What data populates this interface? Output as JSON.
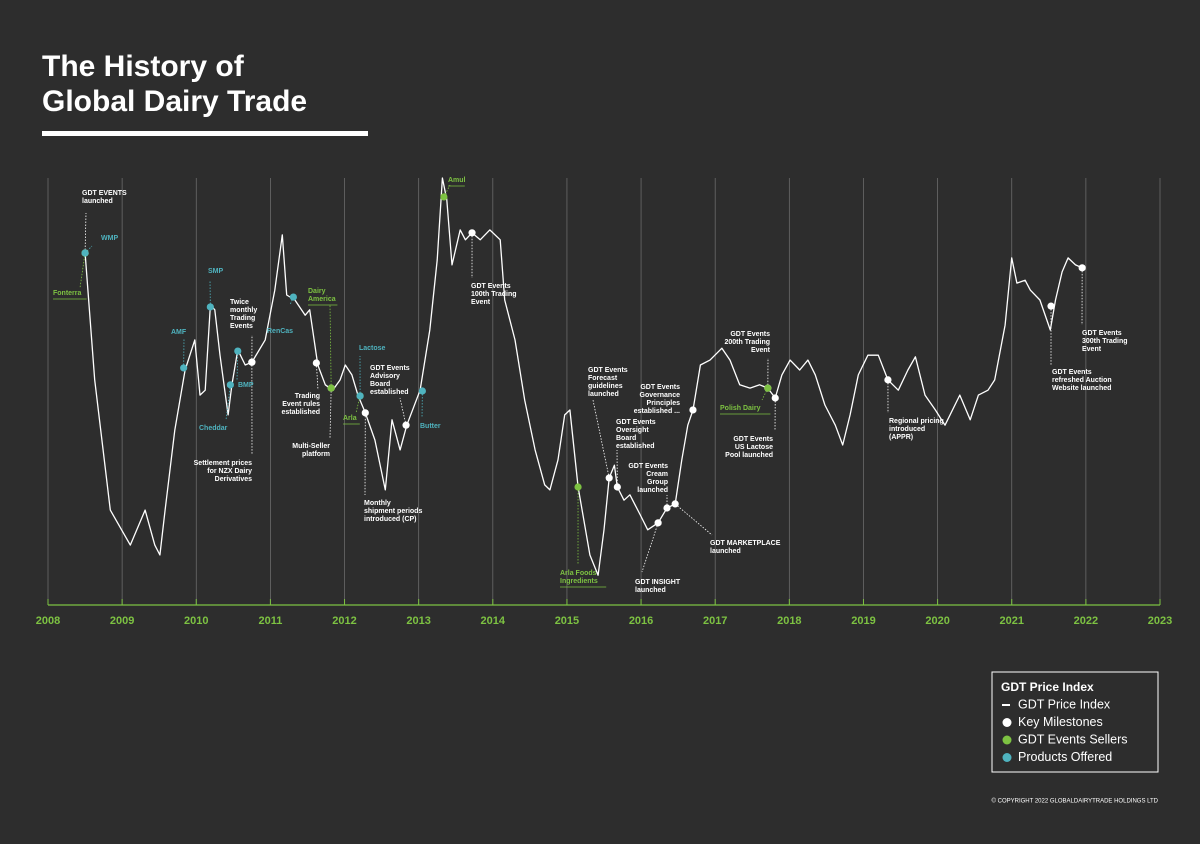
{
  "chart_data": {
    "type": "line",
    "title": [
      "The History of",
      "Global Dairy Trade"
    ],
    "x": [
      2008.5,
      2008.63,
      2008.84,
      2009.11,
      2009.31,
      2009.44,
      2009.51,
      2009.58,
      2009.71,
      2009.85,
      2009.98,
      2010.05,
      2010.12,
      2010.19,
      2010.25,
      2010.32,
      2010.43,
      2010.48,
      2010.56,
      2010.66,
      2010.75,
      2010.93,
      2011.06,
      2011.16,
      2011.22,
      2011.33,
      2011.47,
      2011.53,
      2011.64,
      2011.74,
      2011.84,
      2011.94,
      2012.01,
      2012.1,
      2012.18,
      2012.28,
      2012.41,
      2012.55,
      2012.64,
      2012.75,
      2012.84,
      2013.02,
      2013.15,
      2013.25,
      2013.32,
      2013.38,
      2013.45,
      2013.56,
      2013.63,
      2013.72,
      2013.83,
      2013.96,
      2014.1,
      2014.16,
      2014.3,
      2014.43,
      2014.57,
      2014.7,
      2014.77,
      2014.88,
      2014.97,
      2015.04,
      2015.15,
      2015.31,
      2015.42,
      2015.5,
      2015.57,
      2015.64,
      2015.68,
      2015.77,
      2015.85,
      2015.99,
      2016.09,
      2016.23,
      2016.35,
      2016.46,
      2016.55,
      2016.63,
      2016.7,
      2016.8,
      2016.93,
      2017.09,
      2017.2,
      2017.33,
      2017.47,
      2017.6,
      2017.71,
      2017.81,
      2017.9,
      2018.01,
      2018.14,
      2018.25,
      2018.35,
      2018.48,
      2018.62,
      2018.72,
      2018.82,
      2018.93,
      2019.06,
      2019.2,
      2019.33,
      2019.47,
      2019.6,
      2019.7,
      2019.83,
      2019.97,
      2020.1,
      2020.3,
      2020.44,
      2020.55,
      2020.68,
      2020.77,
      2020.91,
      2021.0,
      2021.07,
      2021.18,
      2021.25,
      2021.38,
      2021.52,
      2021.59,
      2021.68,
      2021.76,
      2021.86,
      2021.95
    ],
    "series": [
      {
        "name": "GDT Price Index",
        "color": "#ffffff",
        "values": [
          81.8,
          51.0,
          19.4,
          10.9,
          19.4,
          10.9,
          8.5,
          19.4,
          38.8,
          53.4,
          60.7,
          47.3,
          48.5,
          69.2,
          68.0,
          57.0,
          42.5,
          49.8,
          58.3,
          54.6,
          55.3,
          60.7,
          72.8,
          86.2,
          71.6,
          70.4,
          66.7,
          68.0,
          54.6,
          49.8,
          48.5,
          51.0,
          54.6,
          52.2,
          47.3,
          43.0,
          36.4,
          24.3,
          41.3,
          34.0,
          40.0,
          48.5,
          63.1,
          80.1,
          100,
          94.7,
          78.9,
          87.4,
          85.0,
          86.7,
          85.0,
          87.4,
          85.0,
          70.4,
          60.7,
          46.1,
          34.0,
          25.5,
          24.3,
          31.6,
          42.5,
          43.7,
          25.0,
          8.5,
          3.6,
          14.6,
          27.2,
          30.3,
          25.0,
          21.8,
          23.1,
          18.2,
          14.6,
          16.3,
          19.9,
          20.9,
          31.6,
          40.0,
          43.7,
          54.6,
          55.8,
          58.7,
          55.8,
          49.8,
          49.0,
          49.8,
          49.0,
          46.6,
          52.2,
          55.8,
          53.4,
          55.8,
          52.2,
          44.9,
          40.0,
          35.2,
          42.5,
          52.2,
          57.0,
          57.0,
          51.0,
          48.5,
          53.4,
          56.6,
          47.3,
          43.7,
          40.0,
          47.3,
          41.3,
          47.3,
          48.5,
          51.0,
          64.3,
          80.6,
          74.5,
          75.2,
          72.8,
          70.4,
          63.1,
          70.4,
          77.2,
          80.6,
          78.9,
          78.2
        ]
      }
    ],
    "markers": [
      {
        "name": "Key Milestones",
        "color": "#ffffff",
        "x": [
          2008.5,
          2010.75,
          2010.75,
          2011.62,
          2011.82,
          2012.28,
          2012.83,
          2013.72,
          2015.57,
          2015.68,
          2016.23,
          2016.35,
          2016.46,
          2016.7,
          2017.71,
          2017.81,
          2019.33,
          2021.53,
          2021.95
        ],
        "values": [
          81.8,
          55.3,
          55.3,
          55.1,
          49.0,
          43.0,
          40.0,
          86.7,
          27.2,
          25.0,
          16.3,
          19.9,
          20.9,
          43.7,
          49.0,
          46.6,
          51.0,
          68.9,
          78.2
        ],
        "labels": [
          [
            "GDT EVENTS",
            "launched"
          ],
          [
            "Twice",
            "monthly",
            "Trading",
            "Events"
          ],
          [
            "Settlement prices",
            "for NZX Dairy",
            "Derivatives"
          ],
          [
            "Trading",
            "Event rules",
            "established"
          ],
          [
            "Multi-Seller",
            "platform"
          ],
          [
            "Monthly",
            "shipment periods",
            "introduced (CP)"
          ],
          [
            "GDT Events",
            "Advisory",
            "Board",
            "established"
          ],
          [
            "GDT Events",
            "100th Trading",
            "Event"
          ],
          [
            "GDT Events",
            "Forecast",
            "guidelines",
            "launched"
          ],
          [
            "GDT Events",
            "Oversight",
            "Board",
            "established"
          ],
          [
            "GDT INSIGHT",
            "launched"
          ],
          [
            "GDT Events",
            "Cream",
            "Group",
            "launched"
          ],
          [
            "GDT MARKETPLACE",
            "launched"
          ],
          [
            "GDT Events",
            "Governance",
            "Principles",
            "established ..."
          ],
          [
            "GDT Events",
            "200th Trading",
            "Event"
          ],
          [
            "GDT Events",
            "US Lactose",
            "Pool launched"
          ],
          [
            "Regional pricing",
            "introduced",
            "(APPR)"
          ],
          [
            "GDT Events",
            "refreshed Auction",
            "Website launched"
          ],
          [
            "GDT Events",
            "300th Trading",
            "Event"
          ]
        ]
      },
      {
        "name": "GDT Events Sellers",
        "color": "#7dc242",
        "x": [
          2008.5,
          2011.82,
          2012.21,
          2013.34,
          2015.15,
          2017.71
        ],
        "values": [
          81.8,
          49.0,
          47.1,
          95.4,
          25.0,
          49.0
        ],
        "labels": [
          [
            "Fonterra"
          ],
          [
            "Dairy",
            "America"
          ],
          [
            "Arla"
          ],
          [
            "Amul"
          ],
          [
            "Arla Foods",
            "Ingredients"
          ],
          [
            "Polish Dairy"
          ]
        ]
      },
      {
        "name": "Products Offered",
        "color": "#4fb3bf",
        "x": [
          2008.5,
          2009.83,
          2010.19,
          2010.46,
          2010.56,
          2011.31,
          2012.21,
          2013.05
        ],
        "values": [
          81.8,
          53.9,
          68.7,
          49.8,
          58.0,
          71.1,
          47.1,
          48.3
        ],
        "labels": [
          [
            "WMP"
          ],
          [
            "AMF"
          ],
          [
            "SMP"
          ],
          [
            "Cheddar"
          ],
          [
            "BMP"
          ],
          [
            "RenCas"
          ],
          [
            "Lactose"
          ],
          [
            "Butter"
          ]
        ]
      }
    ],
    "xlim": [
      2008,
      2023
    ],
    "xticks": [
      2008,
      2009,
      2010,
      2011,
      2012,
      2013,
      2014,
      2015,
      2016,
      2017,
      2018,
      2019,
      2020,
      2021,
      2022,
      2023
    ],
    "ylim": [
      0,
      100
    ],
    "axis_color": "#7dc242",
    "legend_title": "GDT Price Index",
    "legend": "bottom-right",
    "copyright": "© COPYRIGHT 2022 GLOBALDAIRYTRADE HOLDINGS LTD"
  }
}
